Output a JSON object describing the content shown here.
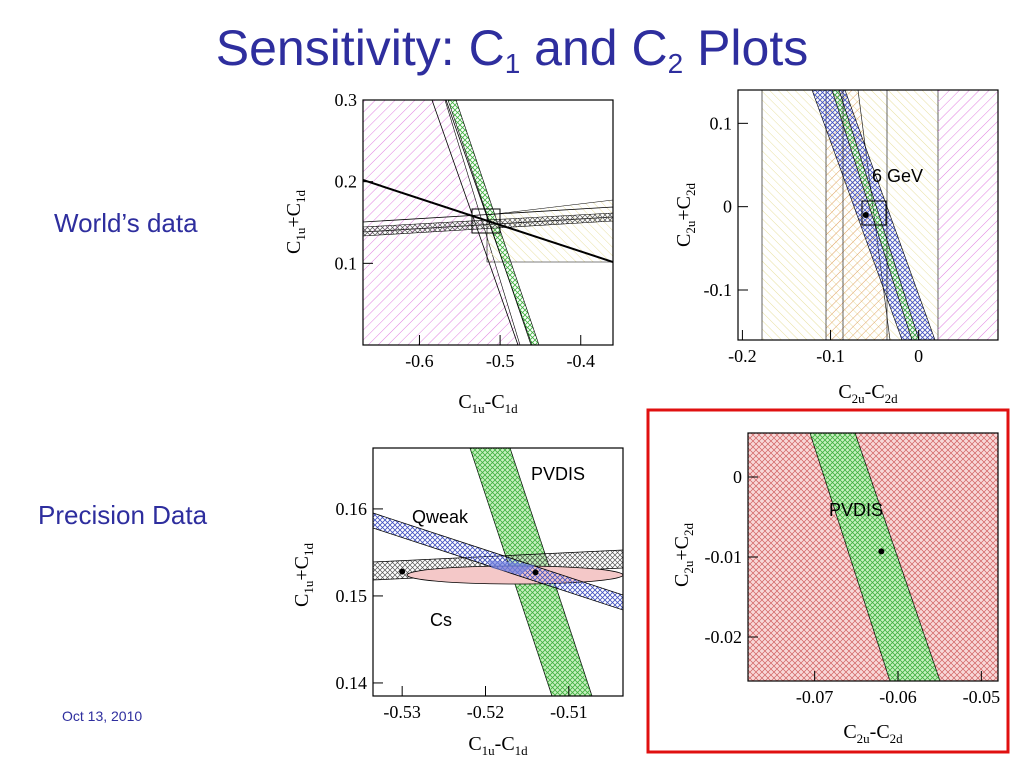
{
  "title": {
    "pre": "Sensitivity: C",
    "sub1": "1",
    "mid": " and C",
    "sub2": "2",
    "post": " Plots"
  },
  "labels": {
    "worlds_data": "World’s data",
    "precision_data": "Precision Data",
    "date": "Oct 13, 2010"
  },
  "colors": {
    "title": "#2e2e9e",
    "highlight_border": "#e01010"
  },
  "chart_data": [
    {
      "id": "c1-world",
      "type": "scatter",
      "xlabel": "C1u-C1d",
      "ylabel": "C1u+C1d",
      "xlim": [
        -0.67,
        -0.36
      ],
      "ylim": [
        0.0,
        0.3
      ],
      "xticks": [
        "-0.6",
        "-0.5",
        "-0.4"
      ],
      "yticks": [
        "0.1",
        "0.2",
        "0.3"
      ]
    },
    {
      "id": "c2-world",
      "type": "scatter",
      "xlabel": "C2u-C2d",
      "ylabel": "C2u+C2d",
      "xlim": [
        -0.205,
        0.09
      ],
      "ylim": [
        -0.16,
        0.14
      ],
      "xticks": [
        "-0.2",
        "-0.1",
        "0"
      ],
      "yticks": [
        "0.1",
        "0",
        "-0.1"
      ],
      "annotations": [
        "6 GeV"
      ],
      "points": [
        {
          "x": -0.06,
          "y": -0.01
        }
      ]
    },
    {
      "id": "c1-precision",
      "type": "scatter",
      "xlabel": "C1u-C1d",
      "ylabel": "C1u+C1d",
      "xlim": [
        -0.5335,
        -0.5035
      ],
      "ylim": [
        0.1385,
        0.167
      ],
      "xticks": [
        "-0.53",
        "-0.52",
        "-0.51"
      ],
      "yticks": [
        "0.14",
        "0.15",
        "0.16"
      ],
      "annotations": [
        "PVDIS",
        "Qweak",
        "Cs"
      ],
      "points": [
        {
          "x": -0.53,
          "y": 0.1528
        },
        {
          "x": -0.514,
          "y": 0.1527
        }
      ]
    },
    {
      "id": "c2-precision",
      "type": "scatter",
      "xlabel": "C2u-C2d",
      "ylabel": "C2u+C2d",
      "xlim": [
        -0.078,
        -0.048
      ],
      "ylim": [
        -0.0255,
        0.0055
      ],
      "xticks": [
        "-0.07",
        "-0.06",
        "-0.05"
      ],
      "yticks": [
        "0",
        "-0.01",
        "-0.02"
      ],
      "annotations": [
        "PVDIS"
      ],
      "points": [
        {
          "x": -0.062,
          "y": -0.0093
        }
      ]
    }
  ]
}
